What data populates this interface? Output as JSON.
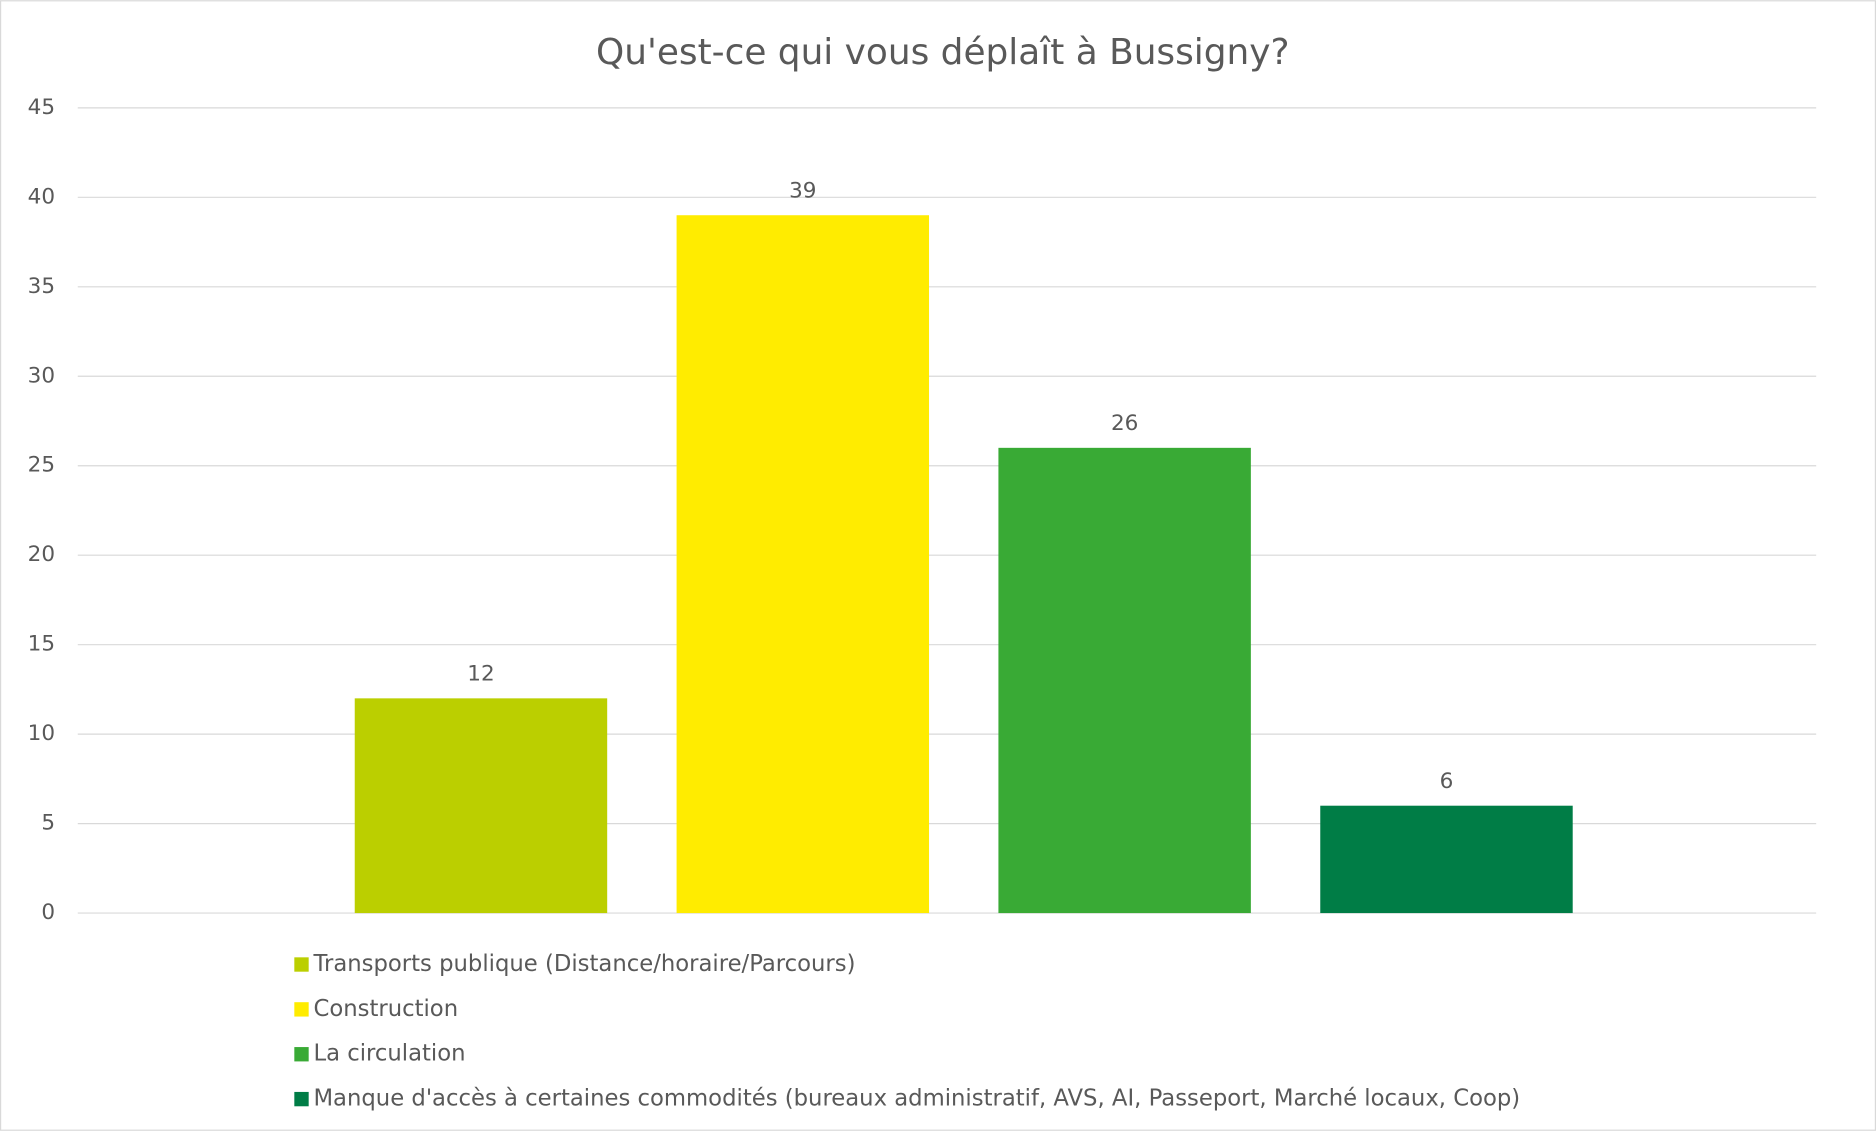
{
  "chart_data": {
    "type": "bar",
    "title": "Qu'est-ce qui vous déplaît à Bussigny?",
    "categories": [
      null
    ],
    "series": [
      {
        "name": "Transports publique (Distance/horaire/Parcours)",
        "color": "#bbcf00",
        "values": [
          12
        ]
      },
      {
        "name": "Construction",
        "color": "#ffec00",
        "values": [
          39
        ]
      },
      {
        "name": "La circulation",
        "color": "#39aa35",
        "values": [
          26
        ]
      },
      {
        "name": "Manque d'accès à certaines commodités (bureaux administratif, AVS, AI, Passeport, Marché locaux, Coop)",
        "color": "#007d46",
        "values": [
          6
        ]
      }
    ],
    "ylim": [
      0,
      45
    ],
    "yticks": [
      0,
      5,
      10,
      15,
      20,
      25,
      30,
      35,
      40,
      45
    ],
    "grid": true,
    "legend": "bottom"
  }
}
